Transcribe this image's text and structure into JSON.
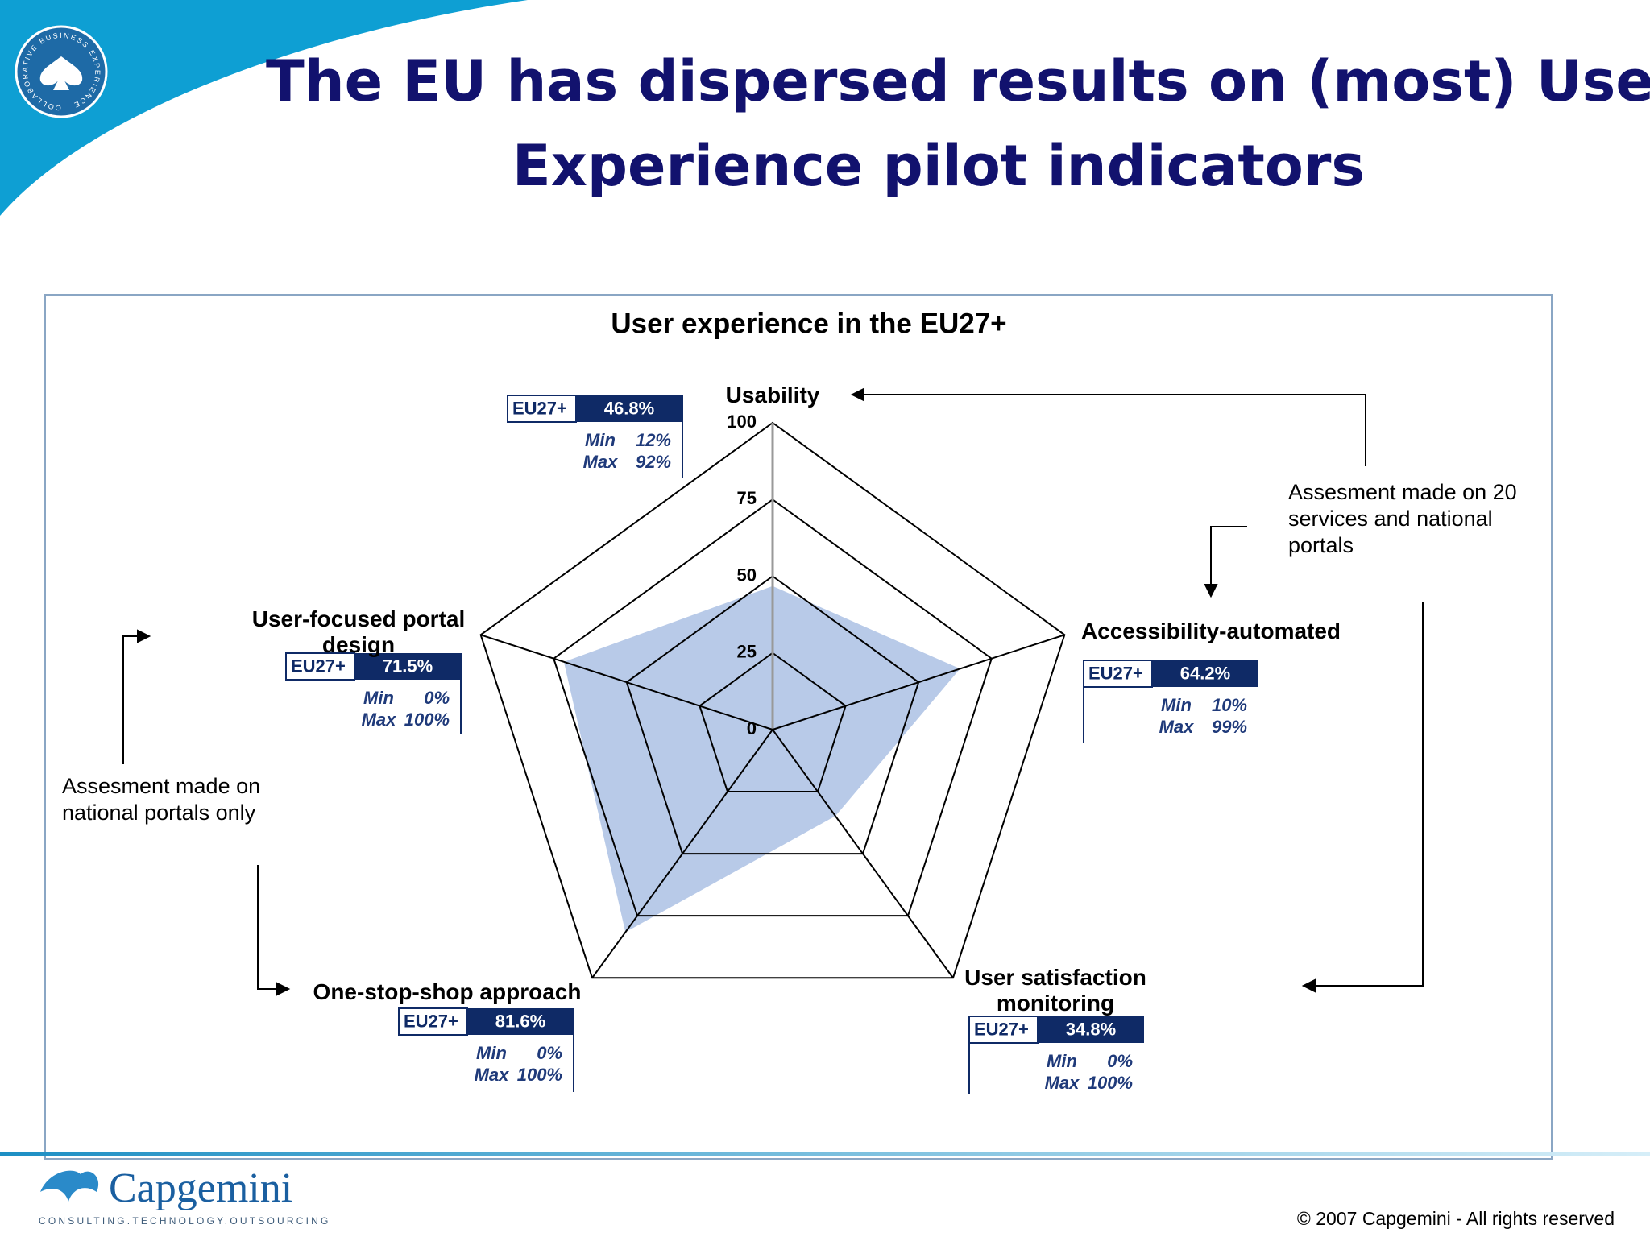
{
  "title_lines": [
    "The EU has dispersed results on (most) User-",
    "Experience pilot indicators"
  ],
  "chart_data": {
    "type": "radar",
    "title": "User experience in the EU27+",
    "categories": [
      "Usability",
      "Accessibility-automated",
      "User satisfaction monitoring",
      "One-stop-shop approach",
      "User-focused portal design"
    ],
    "series": [
      {
        "name": "EU27+",
        "color": "#b4c7e7",
        "values": [
          46.8,
          64.2,
          34.8,
          81.6,
          71.5
        ],
        "value_labels": [
          "46.8%",
          "64.2%",
          "34.8%",
          "81.6%",
          "71.5%"
        ]
      }
    ],
    "rlim": [
      0,
      100
    ],
    "rticks": [
      0,
      25,
      50,
      75,
      100
    ],
    "min_label": "Min",
    "max_label": "Max",
    "min": [
      {
        "value": 12,
        "label": "12%"
      },
      {
        "value": 10,
        "label": "10%"
      },
      {
        "value": 0,
        "label": "0%"
      },
      {
        "value": 0,
        "label": "0%"
      },
      {
        "value": 0,
        "label": "0%"
      }
    ],
    "max": [
      {
        "value": 92,
        "label": "92%"
      },
      {
        "value": 99,
        "label": "99%"
      },
      {
        "value": 100,
        "label": "100%"
      },
      {
        "value": 100,
        "label": "100%"
      },
      {
        "value": 100,
        "label": "100%"
      }
    ],
    "annotations": [
      "Assesment made on 20 services and national portals",
      "Assesment made on national portals only"
    ]
  },
  "badge": "COLLABORATIVE BUSINESS EXPERIENCE",
  "footer": {
    "logo": "Capgemini",
    "tagline": "CONSULTING.TECHNOLOGY.OUTSOURCING",
    "copyright": "© 2007 Capgemini - All rights reserved"
  }
}
